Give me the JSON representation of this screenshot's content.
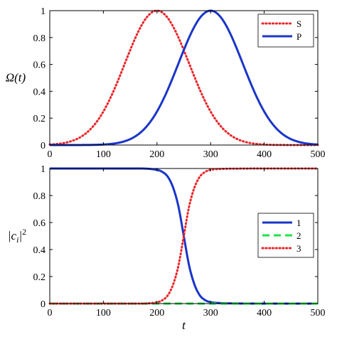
{
  "chart_data": [
    {
      "type": "line",
      "panel": "top",
      "ylabel": "Ω(t)",
      "xlim": [
        0,
        500
      ],
      "ylim": [
        0,
        1
      ],
      "xticks": [
        "0",
        "100",
        "200",
        "300",
        "400",
        "500"
      ],
      "yticks": [
        "0",
        "0.2",
        "0.4",
        "0.6",
        "0.8",
        "1"
      ],
      "legend_position": "top-right",
      "series": [
        {
          "name": "S",
          "color": "#e8262a",
          "style": "dotted",
          "peak_x": 200,
          "peak_y": 1.0,
          "width_sigma": 60
        },
        {
          "name": "P",
          "color": "#1a35c9",
          "style": "solid",
          "peak_x": 300,
          "peak_y": 1.0,
          "width_sigma": 60
        }
      ]
    },
    {
      "type": "line",
      "panel": "bottom",
      "xlabel": "t",
      "ylabel": "|c_i|^2",
      "xlim": [
        0,
        500
      ],
      "ylim": [
        0,
        1
      ],
      "xticks": [
        "0",
        "100",
        "200",
        "300",
        "400",
        "500"
      ],
      "yticks": [
        "0",
        "0.2",
        "0.4",
        "0.6",
        "0.8",
        "1"
      ],
      "legend_position": "middle-right",
      "series": [
        {
          "name": "1",
          "color": "#1a35c9",
          "style": "solid",
          "x": [
            0,
            150,
            180,
            200,
            210,
            220,
            230,
            240,
            250,
            260,
            270,
            280,
            290,
            300,
            320,
            350,
            400,
            500
          ],
          "y": [
            1,
            1,
            0.999,
            0.99,
            0.975,
            0.94,
            0.86,
            0.72,
            0.5,
            0.28,
            0.14,
            0.06,
            0.025,
            0.01,
            0.003,
            0.001,
            0,
            0
          ]
        },
        {
          "name": "2",
          "color": "#22e34a",
          "style": "dashed",
          "x": [
            0,
            500
          ],
          "y": [
            0,
            0
          ]
        },
        {
          "name": "3",
          "color": "#e8262a",
          "style": "dotted",
          "x": [
            0,
            150,
            180,
            200,
            210,
            220,
            230,
            240,
            250,
            260,
            270,
            280,
            290,
            300,
            320,
            350,
            400,
            500
          ],
          "y": [
            0,
            0,
            0.001,
            0.01,
            0.025,
            0.06,
            0.14,
            0.28,
            0.5,
            0.72,
            0.86,
            0.94,
            0.975,
            0.99,
            0.997,
            0.999,
            1,
            1
          ]
        }
      ]
    }
  ]
}
